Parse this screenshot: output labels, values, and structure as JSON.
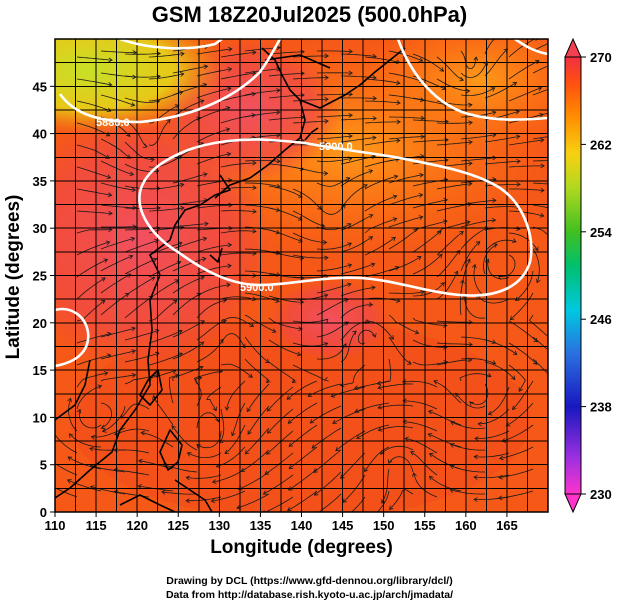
{
  "title": "GSM 18Z20Jul2025 (500.0hPa)",
  "axes": {
    "xlabel": "Longitude (degrees)",
    "ylabel": "Latitude  (degrees)",
    "xlim": [
      110,
      170
    ],
    "ylim": [
      0,
      50
    ],
    "xticks": [
      "110",
      "115",
      "120",
      "125",
      "130",
      "135",
      "140",
      "145",
      "150",
      "155",
      "160",
      "165"
    ],
    "yticks": [
      "0",
      "5",
      "10",
      "15",
      "20",
      "25",
      "30",
      "35",
      "40",
      "45"
    ],
    "grid": true
  },
  "colorbar": {
    "ticks": [
      "230",
      "238",
      "246",
      "254",
      "262",
      "270"
    ],
    "range": [
      230,
      270
    ],
    "palette": [
      "#ff33cc",
      "#8a2be2",
      "#1010c0",
      "#2a6fe0",
      "#00bcd4",
      "#00c96a",
      "#30c030",
      "#a8d820",
      "#f5d010",
      "#ff9000",
      "#ff5a10",
      "#f24040"
    ]
  },
  "contour_labels": {
    "upper": "5880.0",
    "middle": "5900.0",
    "lower": "5900.0"
  },
  "credits": {
    "drawing": "Drawing by DCL (https://www.gfd-dennou.org/library/dcl/)",
    "data": "Data from http://database.rish.kyoto-u.ac.jp/arch/jmadata/"
  },
  "chart_data": {
    "type": "heatmap",
    "variable": "temperature",
    "level_hPa": 500.0,
    "overlays": [
      "streamlines",
      "geopotential height contours",
      "coastlines",
      "lat-lon grid"
    ],
    "contour_levels": [
      5880.0,
      5900.0
    ],
    "xlim": [
      110,
      170
    ],
    "ylim": [
      0,
      50
    ],
    "value_range": [
      230,
      270
    ]
  }
}
